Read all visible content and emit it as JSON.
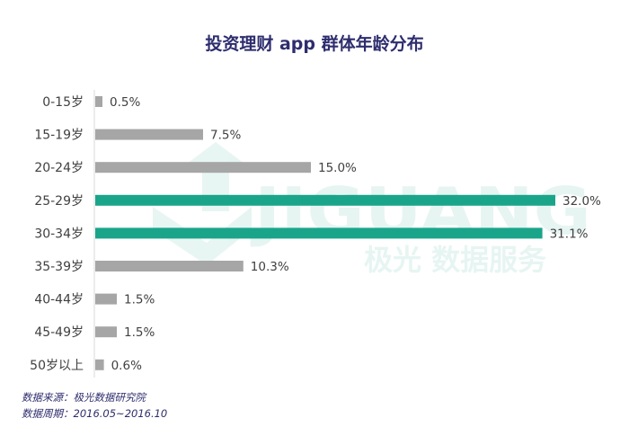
{
  "watermark": {
    "brand": "JIGUANG",
    "tagline": "极光 数据服务"
  },
  "chart_data": {
    "type": "bar",
    "orientation": "horizontal",
    "title": "投资理财 app 群体年龄分布",
    "categories": [
      "0-15岁",
      "15-19岁",
      "20-24岁",
      "25-29岁",
      "30-34岁",
      "35-39岁",
      "40-44岁",
      "45-49岁",
      "50岁以上"
    ],
    "values": [
      0.5,
      7.5,
      15.0,
      32.0,
      31.1,
      10.3,
      1.5,
      1.5,
      0.6
    ],
    "value_labels": [
      "0.5%",
      "7.5%",
      "15.0%",
      "32.0%",
      "31.1%",
      "10.3%",
      "1.5%",
      "1.5%",
      "0.6%"
    ],
    "highlight_categories": [
      "25-29岁",
      "30-34岁"
    ],
    "xlim": [
      0,
      32
    ],
    "grid": false,
    "colors": {
      "default": "#a6a6a6",
      "highlight": "#1aa58a",
      "text": "#404040",
      "axis": "#d9d9d9"
    }
  },
  "footnotes": {
    "source": "数据来源：极光数据研究院",
    "period": "数据周期：2016.05~2016.10"
  }
}
